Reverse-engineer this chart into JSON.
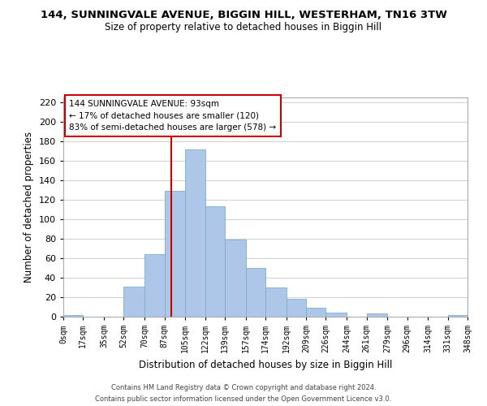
{
  "title": "144, SUNNINGVALE AVENUE, BIGGIN HILL, WESTERHAM, TN16 3TW",
  "subtitle": "Size of property relative to detached houses in Biggin Hill",
  "xlabel": "Distribution of detached houses by size in Biggin Hill",
  "ylabel": "Number of detached properties",
  "bar_color": "#aec6e8",
  "bar_edge_color": "#7aaed0",
  "grid_color": "#d0d0d0",
  "background_color": "#ffffff",
  "annotation_box_color": "#ffffff",
  "annotation_border_color": "#cc0000",
  "redline_color": "#cc0000",
  "property_value": 93,
  "annotation_line1": "144 SUNNINGVALE AVENUE: 93sqm",
  "annotation_line2": "← 17% of detached houses are smaller (120)",
  "annotation_line3": "83% of semi-detached houses are larger (578) →",
  "tick_labels": [
    "0sqm",
    "17sqm",
    "35sqm",
    "52sqm",
    "70sqm",
    "87sqm",
    "105sqm",
    "122sqm",
    "139sqm",
    "157sqm",
    "174sqm",
    "192sqm",
    "209sqm",
    "226sqm",
    "244sqm",
    "261sqm",
    "279sqm",
    "296sqm",
    "314sqm",
    "331sqm",
    "348sqm"
  ],
  "bin_edges": [
    0,
    17,
    35,
    52,
    70,
    87,
    105,
    122,
    139,
    157,
    174,
    192,
    209,
    226,
    244,
    261,
    279,
    296,
    314,
    331,
    348
  ],
  "bar_heights": [
    2,
    0,
    0,
    31,
    64,
    129,
    172,
    113,
    79,
    50,
    30,
    18,
    9,
    4,
    0,
    3,
    0,
    0,
    0,
    2
  ],
  "ylim": [
    0,
    225
  ],
  "yticks": [
    0,
    20,
    40,
    60,
    80,
    100,
    120,
    140,
    160,
    180,
    200,
    220
  ],
  "footer_line1": "Contains HM Land Registry data © Crown copyright and database right 2024.",
  "footer_line2": "Contains public sector information licensed under the Open Government Licence v3.0."
}
